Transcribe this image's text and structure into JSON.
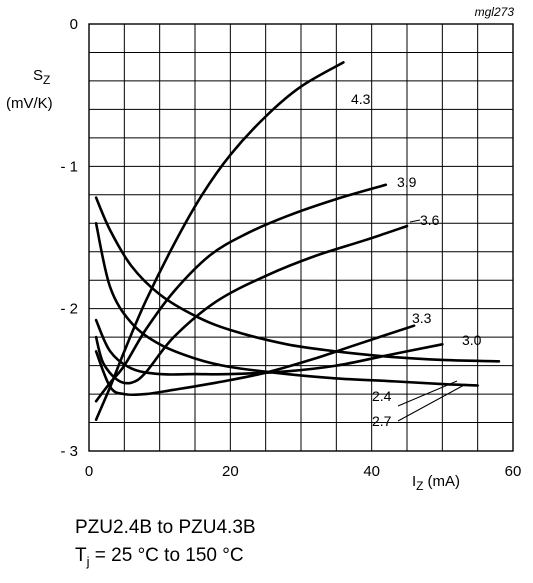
{
  "chart_data": {
    "type": "line",
    "code": "mgl273",
    "ylabel_symbol": "S",
    "ylabel_sub": "Z",
    "ylabel_unit": "(mV/K)",
    "xlabel_symbol": "I",
    "xlabel_sub": "Z",
    "xlabel_unit": "(mA)",
    "xlim": [
      0,
      60
    ],
    "ylim": [
      -3,
      0
    ],
    "x_ticks": [
      0,
      20,
      40,
      60
    ],
    "x_tick_labels": [
      "0",
      "20",
      "40",
      "60"
    ],
    "y_ticks": [
      0,
      -1,
      -2,
      -3
    ],
    "y_tick_labels": [
      "0",
      "- 1",
      "- 2",
      "- 3"
    ],
    "grid": true,
    "series": [
      {
        "name": "4.3",
        "points": [
          [
            1,
            -2.78
          ],
          [
            3,
            -2.55
          ],
          [
            5,
            -2.3
          ],
          [
            8,
            -1.95
          ],
          [
            12,
            -1.55
          ],
          [
            16,
            -1.2
          ],
          [
            20,
            -0.92
          ],
          [
            25,
            -0.65
          ],
          [
            30,
            -0.44
          ],
          [
            36,
            -0.27
          ]
        ]
      },
      {
        "name": "3.9",
        "points": [
          [
            1,
            -2.65
          ],
          [
            3,
            -2.52
          ],
          [
            5,
            -2.4
          ],
          [
            8,
            -2.15
          ],
          [
            12,
            -1.88
          ],
          [
            17,
            -1.63
          ],
          [
            22,
            -1.48
          ],
          [
            28,
            -1.35
          ],
          [
            35,
            -1.23
          ],
          [
            42,
            -1.13
          ]
        ]
      },
      {
        "name": "3.6",
        "points": [
          [
            1,
            -2.2
          ],
          [
            2,
            -2.38
          ],
          [
            4,
            -2.5
          ],
          [
            6,
            -2.52
          ],
          [
            8,
            -2.45
          ],
          [
            12,
            -2.2
          ],
          [
            18,
            -1.95
          ],
          [
            25,
            -1.77
          ],
          [
            32,
            -1.63
          ],
          [
            39,
            -1.52
          ],
          [
            45,
            -1.42
          ]
        ]
      },
      {
        "name": "3.3",
        "points": [
          [
            1,
            -2.3
          ],
          [
            3,
            -2.55
          ],
          [
            5,
            -2.6
          ],
          [
            8,
            -2.6
          ],
          [
            12,
            -2.57
          ],
          [
            18,
            -2.52
          ],
          [
            25,
            -2.45
          ],
          [
            32,
            -2.35
          ],
          [
            38,
            -2.25
          ],
          [
            46,
            -2.12
          ]
        ]
      },
      {
        "name": "3.0",
        "points": [
          [
            1,
            -2.08
          ],
          [
            3,
            -2.3
          ],
          [
            6,
            -2.42
          ],
          [
            10,
            -2.46
          ],
          [
            15,
            -2.46
          ],
          [
            20,
            -2.46
          ],
          [
            28,
            -2.44
          ],
          [
            35,
            -2.4
          ],
          [
            42,
            -2.33
          ],
          [
            50,
            -2.25
          ]
        ]
      },
      {
        "name": "2.4",
        "points": [
          [
            1,
            -1.22
          ],
          [
            3,
            -1.45
          ],
          [
            6,
            -1.7
          ],
          [
            10,
            -1.9
          ],
          [
            15,
            -2.05
          ],
          [
            20,
            -2.15
          ],
          [
            28,
            -2.25
          ],
          [
            35,
            -2.3
          ],
          [
            43,
            -2.34
          ],
          [
            50,
            -2.36
          ],
          [
            58,
            -2.37
          ]
        ]
      },
      {
        "name": "2.7",
        "points": [
          [
            1,
            -1.4
          ],
          [
            3,
            -1.85
          ],
          [
            6,
            -2.1
          ],
          [
            10,
            -2.25
          ],
          [
            15,
            -2.35
          ],
          [
            20,
            -2.41
          ],
          [
            28,
            -2.46
          ],
          [
            35,
            -2.49
          ],
          [
            43,
            -2.51
          ],
          [
            50,
            -2.53
          ],
          [
            55,
            -2.54
          ]
        ]
      }
    ]
  },
  "caption": {
    "line1": "PZU2.4B to PZU4.3B",
    "line2_prefix": "T",
    "line2_sub": "j",
    "line2_suffix": " = 25 °C to 150 °C"
  }
}
